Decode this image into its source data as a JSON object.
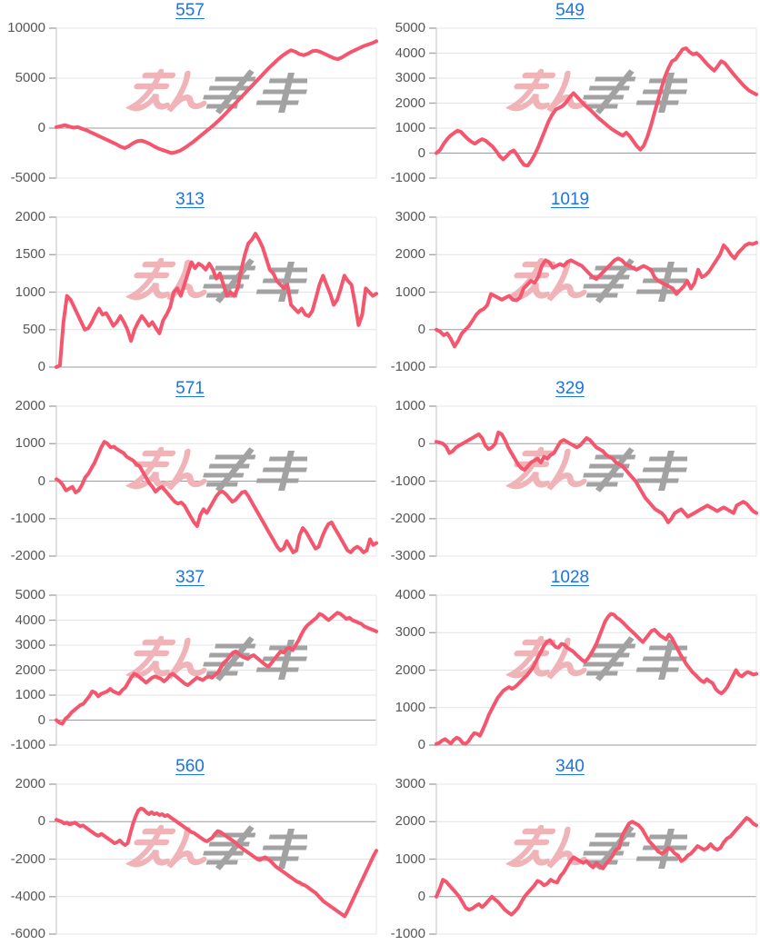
{
  "page": {
    "background": "#ffffff",
    "grid": {
      "columns": 2,
      "rows": 5
    }
  },
  "style": {
    "line_color": "#f4566e",
    "line_width": 4,
    "title_link_color": "#1a73e8",
    "axis_label_color": "#575757",
    "grid_line_color": "#e4e4e4",
    "zero_line_color": "#9b9b9b",
    "axis_line_color": "#d2d2d2",
    "tick_stub_color": "#a8a8a8"
  },
  "watermark": {
    "name": "minrepo-logo-watermark",
    "pink_text": "みん",
    "gray_text": "レポ",
    "pink_color": "#efb3b8",
    "gray_color": "#a2a2a2"
  },
  "chart_data": [
    {
      "type": "line",
      "title": "557",
      "title_is_link": true,
      "ylim": [
        -5000,
        10000
      ],
      "yticks": [
        10000,
        5000,
        0,
        -5000
      ],
      "xlabel": "",
      "ylabel": "",
      "grid": true,
      "legend": "none",
      "values": [
        100,
        200,
        300,
        150,
        50,
        100,
        -50,
        -200,
        -400,
        -600,
        -800,
        -1000,
        -1200,
        -1400,
        -1600,
        -1850,
        -2000,
        -1800,
        -1500,
        -1300,
        -1250,
        -1400,
        -1600,
        -1850,
        -2050,
        -2200,
        -2350,
        -2500,
        -2400,
        -2250,
        -2000,
        -1700,
        -1400,
        -1050,
        -700,
        -350,
        0,
        350,
        750,
        1150,
        1600,
        2050,
        2500,
        2950,
        3400,
        3850,
        4300,
        4750,
        5200,
        5650,
        6100,
        6500,
        6900,
        7250,
        7550,
        7800,
        7650,
        7400,
        7300,
        7450,
        7700,
        7750,
        7600,
        7400,
        7200,
        7000,
        6900,
        7100,
        7350,
        7600,
        7800,
        8000,
        8200,
        8350,
        8500,
        8700
      ]
    },
    {
      "type": "line",
      "title": "549",
      "title_is_link": true,
      "ylim": [
        -1000,
        5000
      ],
      "yticks": [
        5000,
        4000,
        3000,
        2000,
        1000,
        0,
        -1000
      ],
      "xlabel": "",
      "ylabel": "",
      "grid": true,
      "legend": "none",
      "values": [
        0,
        120,
        350,
        550,
        700,
        800,
        900,
        850,
        700,
        560,
        450,
        380,
        480,
        560,
        500,
        380,
        260,
        80,
        -120,
        -250,
        -120,
        40,
        110,
        -80,
        -300,
        -480,
        -500,
        -300,
        -50,
        250,
        600,
        950,
        1300,
        1550,
        1750,
        1820,
        1900,
        2050,
        2250,
        2400,
        2250,
        2100,
        1950,
        1820,
        1700,
        1560,
        1420,
        1300,
        1180,
        1060,
        950,
        860,
        780,
        700,
        820,
        680,
        480,
        280,
        140,
        300,
        650,
        1100,
        1600,
        2100,
        2600,
        3050,
        3400,
        3680,
        3750,
        3950,
        4150,
        4200,
        4050,
        3950,
        4000,
        3880,
        3720,
        3560,
        3420,
        3300,
        3480,
        3680,
        3600,
        3420,
        3250,
        3080,
        2920,
        2760,
        2620,
        2500,
        2420,
        2350
      ]
    },
    {
      "type": "line",
      "title": "313",
      "title_is_link": true,
      "ylim": [
        0,
        2000
      ],
      "yticks": [
        2000,
        1500,
        1000,
        500,
        0
      ],
      "xlabel": "",
      "ylabel": "",
      "grid": true,
      "legend": "none",
      "values": [
        0,
        20,
        600,
        950,
        900,
        800,
        700,
        600,
        500,
        520,
        600,
        700,
        780,
        700,
        720,
        640,
        550,
        600,
        680,
        600,
        500,
        350,
        500,
        600,
        680,
        620,
        550,
        600,
        520,
        450,
        620,
        700,
        800,
        1000,
        1050,
        950,
        1100,
        1250,
        1400,
        1320,
        1380,
        1350,
        1300,
        1380,
        1300,
        1180,
        1250,
        1100,
        950,
        1000,
        950,
        1050,
        1300,
        1500,
        1650,
        1700,
        1780,
        1700,
        1600,
        1450,
        1300,
        1250,
        1150,
        1100,
        1050,
        1100,
        830,
        780,
        730,
        780,
        700,
        680,
        750,
        920,
        1100,
        1220,
        1100,
        980,
        830,
        900,
        1050,
        1220,
        1150,
        1100,
        850,
        560,
        700,
        1050,
        1000,
        950,
        980
      ]
    },
    {
      "type": "line",
      "title": "1019",
      "title_is_link": true,
      "ylim": [
        -1000,
        3000
      ],
      "yticks": [
        3000,
        2000,
        1000,
        0,
        -1000
      ],
      "xlabel": "",
      "ylabel": "",
      "grid": true,
      "legend": "none",
      "values": [
        0,
        -50,
        -150,
        -100,
        -250,
        -450,
        -300,
        -100,
        0,
        100,
        250,
        400,
        500,
        550,
        650,
        950,
        900,
        850,
        800,
        850,
        900,
        800,
        780,
        850,
        1100,
        1200,
        1300,
        1250,
        1400,
        1700,
        1850,
        1800,
        1650,
        1700,
        1750,
        1700,
        1800,
        1850,
        1800,
        1750,
        1700,
        1600,
        1500,
        1400,
        1350,
        1450,
        1550,
        1650,
        1750,
        1850,
        1900,
        1850,
        1750,
        1700,
        1650,
        1600,
        1650,
        1700,
        1650,
        1600,
        1400,
        1300,
        1250,
        1200,
        1150,
        1100,
        950,
        1050,
        1150,
        1300,
        1100,
        1250,
        1600,
        1400,
        1450,
        1550,
        1700,
        1850,
        2000,
        2250,
        2150,
        2000,
        1900,
        2050,
        2150,
        2250,
        2300,
        2280,
        2320
      ]
    },
    {
      "type": "line",
      "title": "571",
      "title_is_link": true,
      "ylim": [
        -2000,
        2000
      ],
      "yticks": [
        2000,
        1000,
        0,
        -1000,
        -2000
      ],
      "xlabel": "",
      "ylabel": "",
      "grid": true,
      "legend": "none",
      "values": [
        50,
        0,
        -100,
        -250,
        -200,
        -150,
        -300,
        -250,
        -100,
        100,
        200,
        350,
        500,
        700,
        900,
        1050,
        1000,
        900,
        920,
        850,
        800,
        750,
        650,
        600,
        550,
        450,
        400,
        250,
        100,
        -50,
        -150,
        -280,
        -200,
        -150,
        -250,
        -350,
        -450,
        -550,
        -600,
        -570,
        -650,
        -800,
        -950,
        -1100,
        -1200,
        -900,
        -750,
        -850,
        -700,
        -550,
        -400,
        -300,
        -280,
        -350,
        -450,
        -550,
        -500,
        -400,
        -300,
        -280,
        -400,
        -550,
        -700,
        -850,
        -1000,
        -1150,
        -1300,
        -1450,
        -1600,
        -1750,
        -1850,
        -1800,
        -1600,
        -1750,
        -1900,
        -1850,
        -1450,
        -1250,
        -1350,
        -1500,
        -1650,
        -1800,
        -1750,
        -1500,
        -1300,
        -1150,
        -1100,
        -1250,
        -1400,
        -1550,
        -1700,
        -1850,
        -1900,
        -1800,
        -1750,
        -1800,
        -1900,
        -1850,
        -1550,
        -1700,
        -1650
      ]
    },
    {
      "type": "line",
      "title": "329",
      "title_is_link": true,
      "ylim": [
        -3000,
        1000
      ],
      "yticks": [
        1000,
        0,
        -1000,
        -2000,
        -3000
      ],
      "xlabel": "",
      "ylabel": "",
      "grid": true,
      "legend": "none",
      "values": [
        50,
        30,
        0,
        -80,
        -250,
        -200,
        -100,
        -50,
        0,
        50,
        100,
        150,
        200,
        250,
        150,
        -50,
        -150,
        -100,
        0,
        300,
        250,
        100,
        -100,
        -250,
        -400,
        -550,
        -650,
        -700,
        -600,
        -500,
        -450,
        -400,
        -500,
        -350,
        -400,
        -300,
        -250,
        -100,
        50,
        100,
        50,
        0,
        -50,
        -100,
        -50,
        50,
        150,
        100,
        0,
        -100,
        -150,
        -200,
        -300,
        -350,
        -400,
        -500,
        -550,
        -600,
        -700,
        -800,
        -900,
        -1000,
        -1150,
        -1300,
        -1450,
        -1550,
        -1650,
        -1750,
        -1800,
        -1850,
        -1950,
        -2100,
        -2000,
        -1850,
        -1800,
        -1750,
        -1850,
        -1950,
        -1900,
        -1850,
        -1800,
        -1750,
        -1700,
        -1650,
        -1700,
        -1750,
        -1800,
        -1750,
        -1700,
        -1750,
        -1800,
        -1850,
        -1650,
        -1600,
        -1550,
        -1600,
        -1700,
        -1800,
        -1850
      ]
    },
    {
      "type": "line",
      "title": "337",
      "title_is_link": true,
      "ylim": [
        -1000,
        5000
      ],
      "yticks": [
        5000,
        4000,
        3000,
        2000,
        1000,
        0,
        -1000
      ],
      "xlabel": "",
      "ylabel": "",
      "grid": true,
      "legend": "none",
      "values": [
        0,
        -100,
        -150,
        50,
        150,
        300,
        400,
        500,
        600,
        650,
        800,
        950,
        1150,
        1100,
        950,
        1050,
        1100,
        1150,
        1250,
        1150,
        1100,
        1050,
        1200,
        1300,
        1500,
        1700,
        1850,
        1800,
        1700,
        1600,
        1500,
        1600,
        1700,
        1750,
        1700,
        1650,
        1550,
        1650,
        1800,
        1850,
        1750,
        1650,
        1550,
        1450,
        1400,
        1500,
        1600,
        1700,
        1650,
        1600,
        1700,
        1750,
        1700,
        1800,
        1900,
        2100,
        2300,
        2400,
        2550,
        2700,
        2750,
        2650,
        2550,
        2500,
        2450,
        2550,
        2600,
        2500,
        2400,
        2300,
        2200,
        2150,
        2300,
        2450,
        2600,
        2750,
        2700,
        2850,
        2900,
        2800,
        3000,
        3200,
        3450,
        3650,
        3800,
        3900,
        4000,
        4100,
        4250,
        4200,
        4100,
        4000,
        4100,
        4200,
        4300,
        4250,
        4150,
        4050,
        4100,
        4000,
        3950,
        3900,
        3850,
        3750,
        3700,
        3650,
        3600,
        3550
      ]
    },
    {
      "type": "line",
      "title": "1028",
      "title_is_link": true,
      "ylim": [
        0,
        4000
      ],
      "yticks": [
        4000,
        3000,
        2000,
        1000,
        0
      ],
      "xlabel": "",
      "ylabel": "",
      "grid": true,
      "legend": "none",
      "values": [
        30,
        60,
        120,
        160,
        100,
        40,
        140,
        200,
        160,
        60,
        30,
        100,
        220,
        320,
        300,
        250,
        420,
        600,
        800,
        950,
        1100,
        1250,
        1350,
        1450,
        1500,
        1550,
        1500,
        1550,
        1620,
        1700,
        1780,
        1850,
        1950,
        2050,
        2200,
        2350,
        2500,
        2650,
        2750,
        2800,
        2700,
        2620,
        2600,
        2700,
        2680,
        2600,
        2550,
        2500,
        2420,
        2350,
        2280,
        2220,
        2300,
        2420,
        2550,
        2700,
        2900,
        3100,
        3300,
        3420,
        3500,
        3480,
        3400,
        3350,
        3280,
        3200,
        3120,
        3050,
        2980,
        2900,
        2820,
        2750,
        2850,
        2950,
        3050,
        3080,
        3000,
        2920,
        2870,
        2820,
        2950,
        2850,
        2700,
        2550,
        2400,
        2280,
        2150,
        2050,
        1950,
        1880,
        1800,
        1720,
        1680,
        1760,
        1700,
        1650,
        1500,
        1420,
        1380,
        1450,
        1550,
        1700,
        1850,
        2000,
        1880,
        1830,
        1900,
        1950,
        1920,
        1880,
        1900
      ]
    },
    {
      "type": "line",
      "title": "560",
      "title_is_link": true,
      "ylim": [
        -6000,
        2000
      ],
      "yticks": [
        2000,
        0,
        -2000,
        -4000,
        -6000
      ],
      "xlabel": "",
      "ylabel": "",
      "grid": true,
      "legend": "none",
      "values": [
        100,
        50,
        0,
        -100,
        -50,
        -150,
        -100,
        -50,
        -150,
        -250,
        -200,
        -300,
        -400,
        -500,
        -600,
        -700,
        -750,
        -650,
        -750,
        -850,
        -950,
        -1050,
        -1150,
        -1100,
        -1000,
        -1150,
        -1250,
        -1150,
        -600,
        -100,
        300,
        600,
        700,
        650,
        500,
        400,
        500,
        400,
        450,
        350,
        400,
        300,
        350,
        250,
        150,
        50,
        -50,
        -150,
        -250,
        -350,
        -450,
        -550,
        -600,
        -700,
        -800,
        -900,
        -1000,
        -1050,
        -950,
        -850,
        -650,
        -500,
        -550,
        -650,
        -750,
        -850,
        -950,
        -1050,
        -1150,
        -1300,
        -1400,
        -1500,
        -1600,
        -1700,
        -1800,
        -1900,
        -2000,
        -2050,
        -1950,
        -1900,
        -2000,
        -2100,
        -2250,
        -2400,
        -2500,
        -2600,
        -2700,
        -2800,
        -2900,
        -3000,
        -3100,
        -3200,
        -3250,
        -3350,
        -3400,
        -3500,
        -3600,
        -3700,
        -3800,
        -3950,
        -4100,
        -4250,
        -4350,
        -4450,
        -4550,
        -4650,
        -4750,
        -4850,
        -4950,
        -5050,
        -4800,
        -4500,
        -4200,
        -3900,
        -3600,
        -3300,
        -3000,
        -2700,
        -2400,
        -2100,
        -1800,
        -1550
      ]
    },
    {
      "type": "line",
      "title": "340",
      "title_is_link": true,
      "ylim": [
        -1000,
        3000
      ],
      "yticks": [
        3000,
        2000,
        1000,
        0,
        -1000
      ],
      "xlabel": "",
      "ylabel": "",
      "grid": true,
      "legend": "none",
      "values": [
        0,
        200,
        450,
        400,
        300,
        200,
        100,
        0,
        -150,
        -300,
        -350,
        -320,
        -250,
        -200,
        -280,
        -200,
        -100,
        0,
        -80,
        -150,
        -250,
        -350,
        -420,
        -480,
        -400,
        -300,
        -150,
        0,
        100,
        200,
        300,
        420,
        380,
        300,
        350,
        450,
        400,
        380,
        550,
        650,
        800,
        950,
        1050,
        1000,
        950,
        900,
        950,
        850,
        780,
        900,
        820,
        750,
        880,
        980,
        1100,
        1250,
        1300,
        1650,
        1800,
        1950,
        2000,
        1950,
        1900,
        1800,
        1650,
        1500,
        1400,
        1300,
        1200,
        1150,
        1200,
        1300,
        1250,
        1150,
        1100,
        950,
        1000,
        1100,
        1150,
        1250,
        1350,
        1300,
        1250,
        1300,
        1400,
        1300,
        1250,
        1300,
        1450,
        1550,
        1600,
        1700,
        1800,
        1900,
        2000,
        2100,
        2050,
        1950,
        1900
      ]
    }
  ]
}
